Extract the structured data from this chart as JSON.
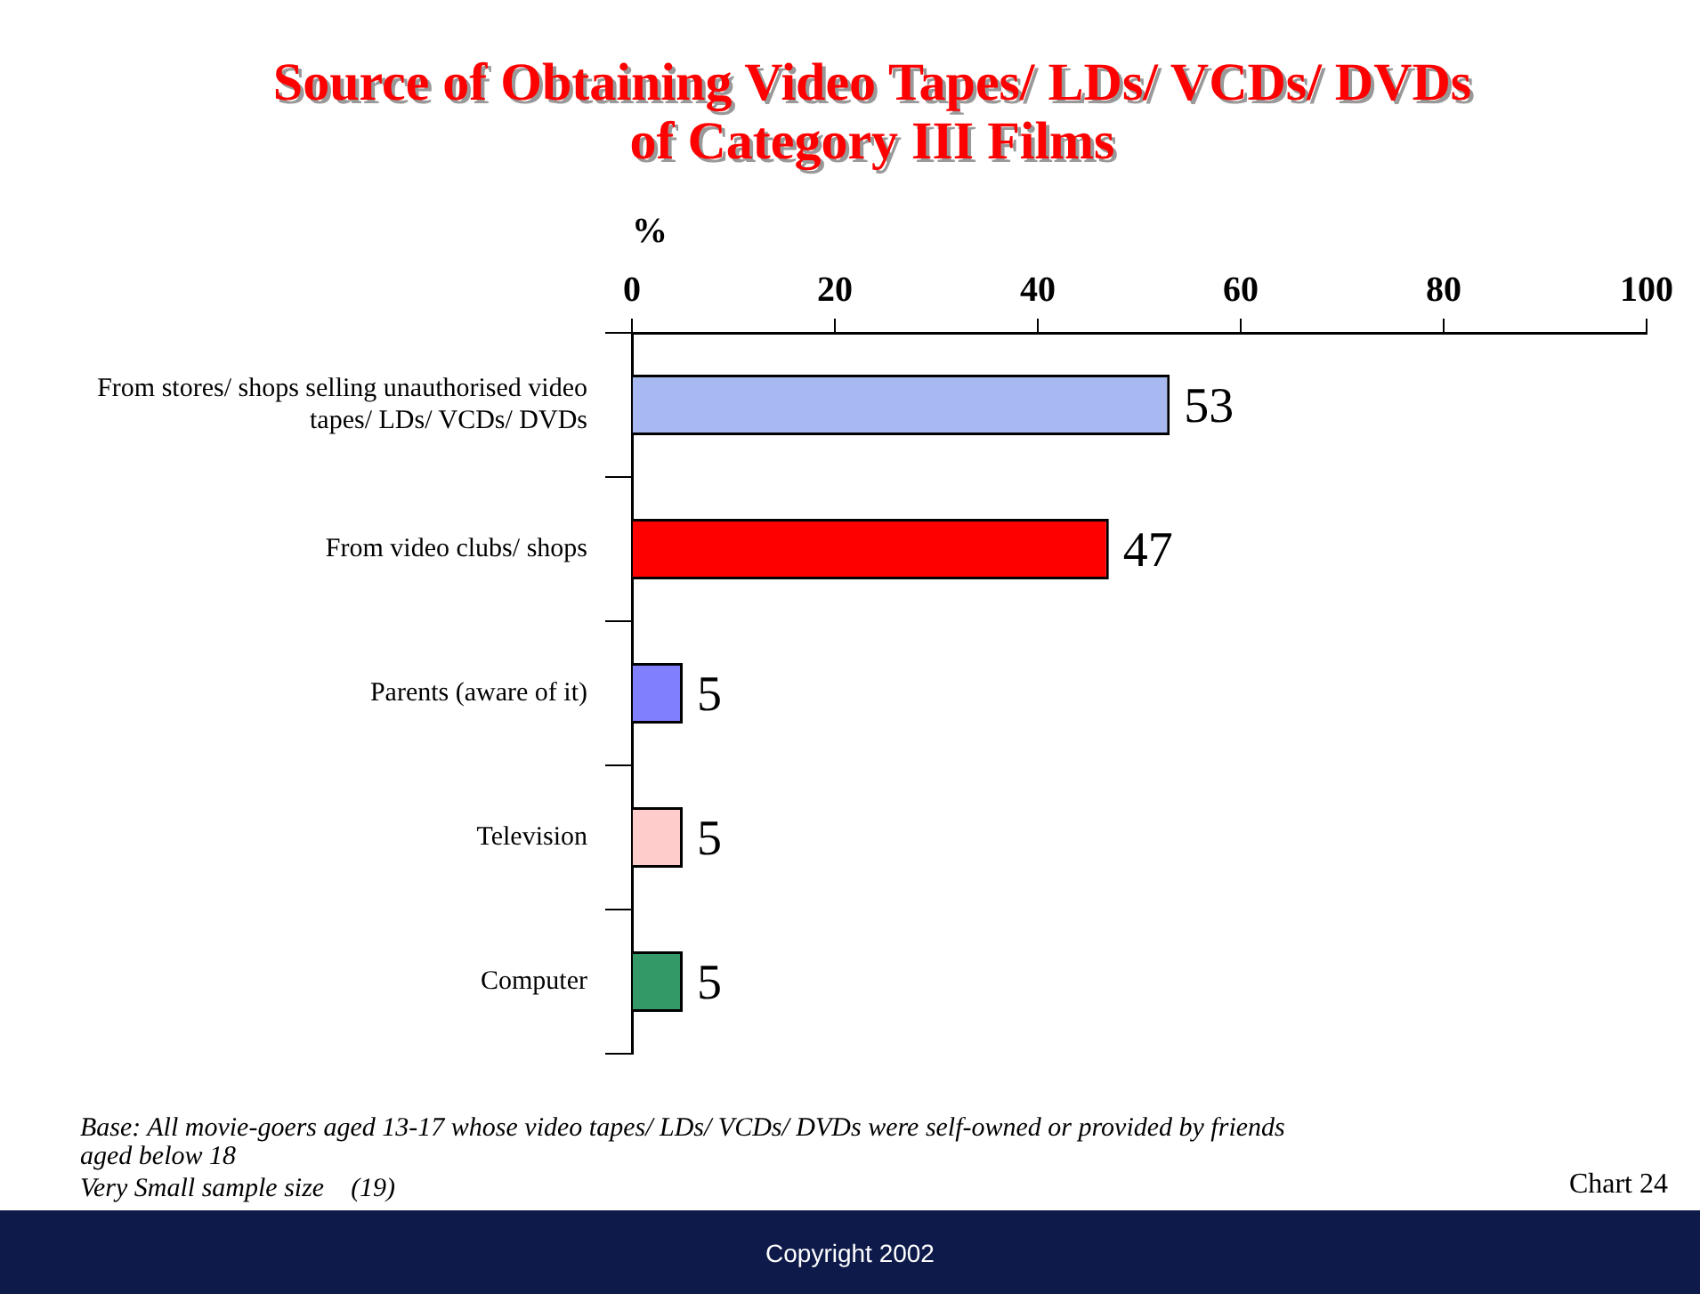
{
  "chart_data": {
    "type": "bar",
    "orientation": "horizontal",
    "title": "Source of Obtaining Video Tapes/ LDs/ VCDs/ DVDs of Category III Films",
    "xlabel": "%",
    "categories": [
      "From stores/ shops selling unauthorised video tapes/ LDs/ VCDs/ DVDs",
      "From video clubs/ shops",
      "Parents (aware of it)",
      "Television",
      "Computer"
    ],
    "values": [
      53,
      47,
      5,
      5,
      5
    ],
    "colors": [
      "#a8b8f0",
      "#ff0000",
      "#8080ff",
      "#ffcccc",
      "#339966"
    ],
    "xlim": [
      0,
      100
    ],
    "xticks": [
      0,
      20,
      40,
      60,
      80,
      100
    ],
    "grid": false,
    "legend": false,
    "data_labels": true,
    "annotations": [
      "Base: All movie-goers aged 13-17 whose video tapes/ LDs/ VCDs/ DVDs were self-owned or provided by friends aged below 18",
      "Very Small sample size    (19)",
      "Chart 24",
      "Copyright 2002"
    ]
  }
}
